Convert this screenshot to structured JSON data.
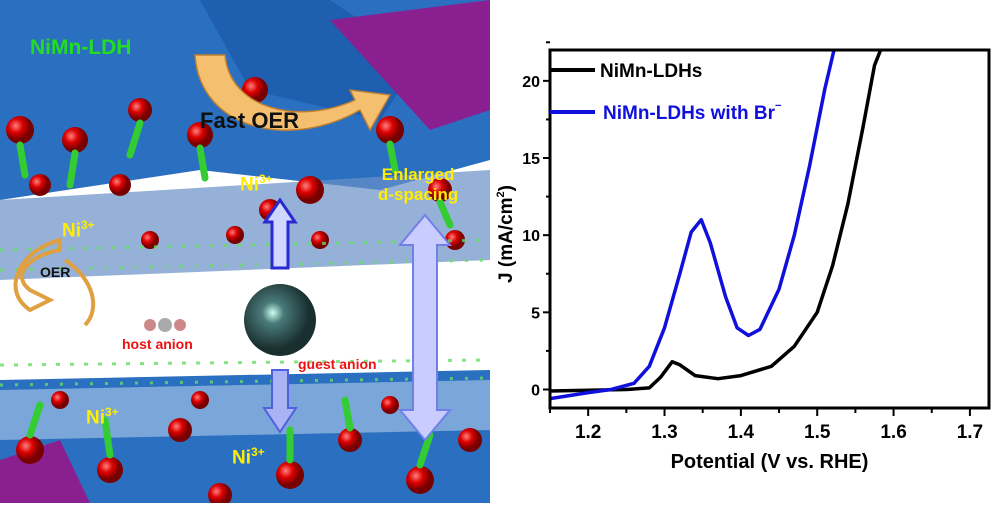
{
  "illustration": {
    "labels": {
      "ldh": "NiMn-LDH",
      "fast_oer": "Fast OER",
      "ni_top": "Ni",
      "ni_left": "Ni",
      "ni_bottom_left": "Ni",
      "ni_bottom": "Ni",
      "charge": "3+",
      "enlarged": "Enlarged",
      "dspacing": "d-spacing",
      "oer": "OER",
      "host_anion": "host anion",
      "guest_anion": "guest anion"
    },
    "colors": {
      "ldh_label": "#22dd22",
      "ni_label": "#ffee00",
      "anion_label": "#ee1111",
      "background": "#2a6fc0",
      "oxygen": "#cc0000",
      "hydrogen": "#33cc33",
      "arrow": "#f4c070"
    }
  },
  "chart_data": {
    "type": "line",
    "xlabel": "Potential (V vs. RHE)",
    "ylabel": "J (mA/cm",
    "ylabel_sup": "2",
    "ylabel_close": ")",
    "xlim": [
      1.15,
      1.725
    ],
    "ylim": [
      -1.2,
      22
    ],
    "xticks": [
      1.2,
      1.3,
      1.4,
      1.5,
      1.6,
      1.7
    ],
    "xtick_labels": [
      "1.2",
      "1.3",
      "1.4",
      "1.5",
      "1.6",
      "1.7"
    ],
    "yticks": [
      0,
      5,
      10,
      15,
      20
    ],
    "ytick_labels": [
      "0",
      "5",
      "10",
      "15",
      "20"
    ],
    "grid": false,
    "legend_position": "top-left",
    "series": [
      {
        "name": "NiMn-LDHs",
        "color": "#000000",
        "x": [
          1.15,
          1.2,
          1.25,
          1.28,
          1.295,
          1.31,
          1.32,
          1.34,
          1.37,
          1.4,
          1.44,
          1.47,
          1.5,
          1.52,
          1.54,
          1.56,
          1.575,
          1.583
        ],
        "y": [
          -0.1,
          -0.05,
          0,
          0.1,
          0.8,
          1.8,
          1.6,
          0.9,
          0.7,
          0.9,
          1.5,
          2.8,
          5,
          8,
          12,
          17,
          21,
          22
        ]
      },
      {
        "name": "NiMn-LDHs with Br",
        "name_sup": "−",
        "color": "#1010dd",
        "x": [
          1.15,
          1.2,
          1.23,
          1.26,
          1.28,
          1.3,
          1.32,
          1.335,
          1.348,
          1.36,
          1.38,
          1.395,
          1.41,
          1.425,
          1.45,
          1.47,
          1.49,
          1.51,
          1.522
        ],
        "y": [
          -0.6,
          -0.2,
          0,
          0.4,
          1.5,
          4,
          7.5,
          10.2,
          11,
          9.5,
          6,
          4,
          3.5,
          3.9,
          6.5,
          10,
          14.5,
          19.5,
          22
        ]
      }
    ]
  }
}
